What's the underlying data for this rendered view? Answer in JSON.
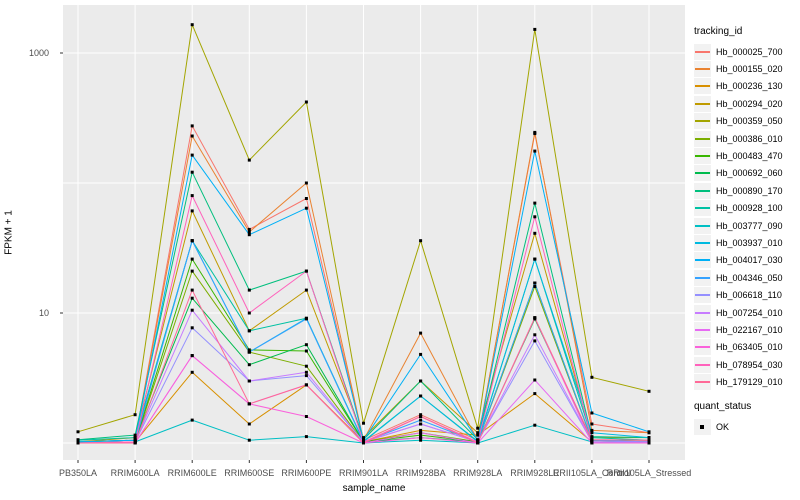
{
  "figure": {
    "panel_bg": "#EBEBEB",
    "grid_color": "#FFFFFF",
    "tick_color": "#333333",
    "tick_label_color": "#4D4D4D",
    "point_color": "#000000"
  },
  "chart_data": {
    "type": "line",
    "title": "",
    "xlabel": "sample_name",
    "ylabel": "FPKM + 1",
    "y_scale": "log10",
    "legend_position": "right",
    "grid": "on",
    "y_axis_ticks": [
      {
        "label": "1000",
        "value": 1000
      },
      {
        "label": "10",
        "value": 10
      }
    ],
    "y_gridline_values": [
      1,
      10,
      100,
      1000
    ],
    "ylim_log": [
      0.93,
      2000
    ],
    "point_marker": "black-square",
    "categories": [
      "PB350LA",
      "RRIM600LA",
      "RRIM600LE",
      "RRIM600SE",
      "RRIM600PE",
      "RRIM901LA",
      "RRIM928BA",
      "RRIM928LA",
      "RRIM928LE",
      "RRII105LA_Control",
      "RRII105LA_Stressed"
    ],
    "series": [
      {
        "name": "Hb_000025_700",
        "color": "#F8766D",
        "values": [
          1.02,
          1.05,
          275,
          44,
          76,
          1.05,
          1.65,
          1.05,
          240,
          1.4,
          1.2
        ]
      },
      {
        "name": "Hb_000155_020",
        "color": "#EA8331",
        "values": [
          1.02,
          1.05,
          230,
          42,
          100,
          1.05,
          7.0,
          1.05,
          245,
          1.25,
          1.2
        ]
      },
      {
        "name": "Hb_000236_130",
        "color": "#D89000",
        "values": [
          1.0,
          1.02,
          3.5,
          1.4,
          2.8,
          1.02,
          1.25,
          1.15,
          2.4,
          1.02,
          1.02
        ]
      },
      {
        "name": "Hb_000294_020",
        "color": "#C09B00",
        "values": [
          1.02,
          1.1,
          61,
          7.3,
          15,
          1.1,
          3.0,
          1.2,
          41,
          1.1,
          1.1
        ]
      },
      {
        "name": "Hb_000359_050",
        "color": "#A3A500",
        "values": [
          1.22,
          1.65,
          1650,
          150,
          420,
          1.42,
          36,
          1.3,
          1520,
          3.2,
          2.5
        ]
      },
      {
        "name": "Hb_000386_010",
        "color": "#7CAE00",
        "values": [
          1.0,
          1.02,
          21,
          5.0,
          3.9,
          1.02,
          1.2,
          1.02,
          16,
          1.05,
          1.02
        ]
      },
      {
        "name": "Hb_000483_470",
        "color": "#39B600",
        "values": [
          1.0,
          1.02,
          26,
          5.2,
          5.1,
          1.02,
          1.15,
          1.02,
          17,
          1.05,
          1.02
        ]
      },
      {
        "name": "Hb_000692_060",
        "color": "#00BB4E",
        "values": [
          1.02,
          1.05,
          13,
          4.0,
          5.7,
          1.02,
          1.1,
          1.02,
          9.0,
          1.05,
          1.05
        ]
      },
      {
        "name": "Hb_000890_170",
        "color": "#00BF7D",
        "values": [
          1.06,
          1.15,
          121,
          15,
          21,
          1.06,
          3.0,
          1.06,
          70,
          1.12,
          1.1
        ]
      },
      {
        "name": "Hb_000928_100",
        "color": "#00C1A3",
        "values": [
          1.05,
          1.1,
          36,
          7.3,
          9.1,
          1.03,
          2.3,
          1.03,
          26,
          1.1,
          1.05
        ]
      },
      {
        "name": "Hb_003777_090",
        "color": "#00BFC4",
        "values": [
          1.0,
          1.02,
          1.5,
          1.05,
          1.12,
          1.0,
          1.05,
          1.0,
          1.37,
          1.02,
          1.02
        ]
      },
      {
        "name": "Hb_003937_010",
        "color": "#00BAE0",
        "values": [
          1.02,
          1.05,
          36,
          5.0,
          9.1,
          1.02,
          2.3,
          1.02,
          26,
          1.2,
          1.1
        ]
      },
      {
        "name": "Hb_004017_030",
        "color": "#00B0F6",
        "values": [
          1.02,
          1.05,
          164,
          40,
          64,
          1.05,
          4.8,
          1.05,
          176,
          1.7,
          1.22
        ]
      },
      {
        "name": "Hb_004346_050",
        "color": "#35A2FF",
        "values": [
          1.0,
          1.02,
          36,
          5.0,
          9.0,
          1.02,
          1.5,
          1.02,
          17,
          1.05,
          1.02
        ]
      },
      {
        "name": "Hb_006618_110",
        "color": "#9590FF",
        "values": [
          1.0,
          1.02,
          7.7,
          3.0,
          3.3,
          1.02,
          1.4,
          1.02,
          6.1,
          1.02,
          1.02
        ]
      },
      {
        "name": "Hb_007254_010",
        "color": "#C77CFF",
        "values": [
          1.0,
          1.02,
          10.5,
          3.0,
          3.5,
          1.02,
          1.4,
          1.02,
          6.8,
          1.02,
          1.02
        ]
      },
      {
        "name": "Hb_022167_010",
        "color": "#E76BF3",
        "values": [
          1.0,
          1.0,
          4.7,
          2.0,
          2.8,
          1.0,
          1.2,
          1.0,
          3.05,
          1.0,
          1.0
        ]
      },
      {
        "name": "Hb_063405_010",
        "color": "#FA62DB",
        "values": [
          1.0,
          1.0,
          4.7,
          2.0,
          1.6,
          1.0,
          1.1,
          1.0,
          9.2,
          1.0,
          1.0
        ]
      },
      {
        "name": "Hb_078954_030",
        "color": "#FF62BC",
        "values": [
          1.0,
          1.02,
          80,
          10,
          21,
          1.02,
          1.6,
          1.02,
          55,
          1.06,
          1.05
        ]
      },
      {
        "name": "Hb_179129_010",
        "color": "#FF6A98",
        "values": [
          1.0,
          1.0,
          15,
          2.0,
          2.8,
          1.0,
          1.6,
          1.0,
          9.2,
          1.06,
          1.05
        ]
      }
    ]
  },
  "legend": {
    "tracking_title": "tracking_id",
    "quant_title": "quant_status",
    "quant_items": [
      "OK"
    ]
  }
}
